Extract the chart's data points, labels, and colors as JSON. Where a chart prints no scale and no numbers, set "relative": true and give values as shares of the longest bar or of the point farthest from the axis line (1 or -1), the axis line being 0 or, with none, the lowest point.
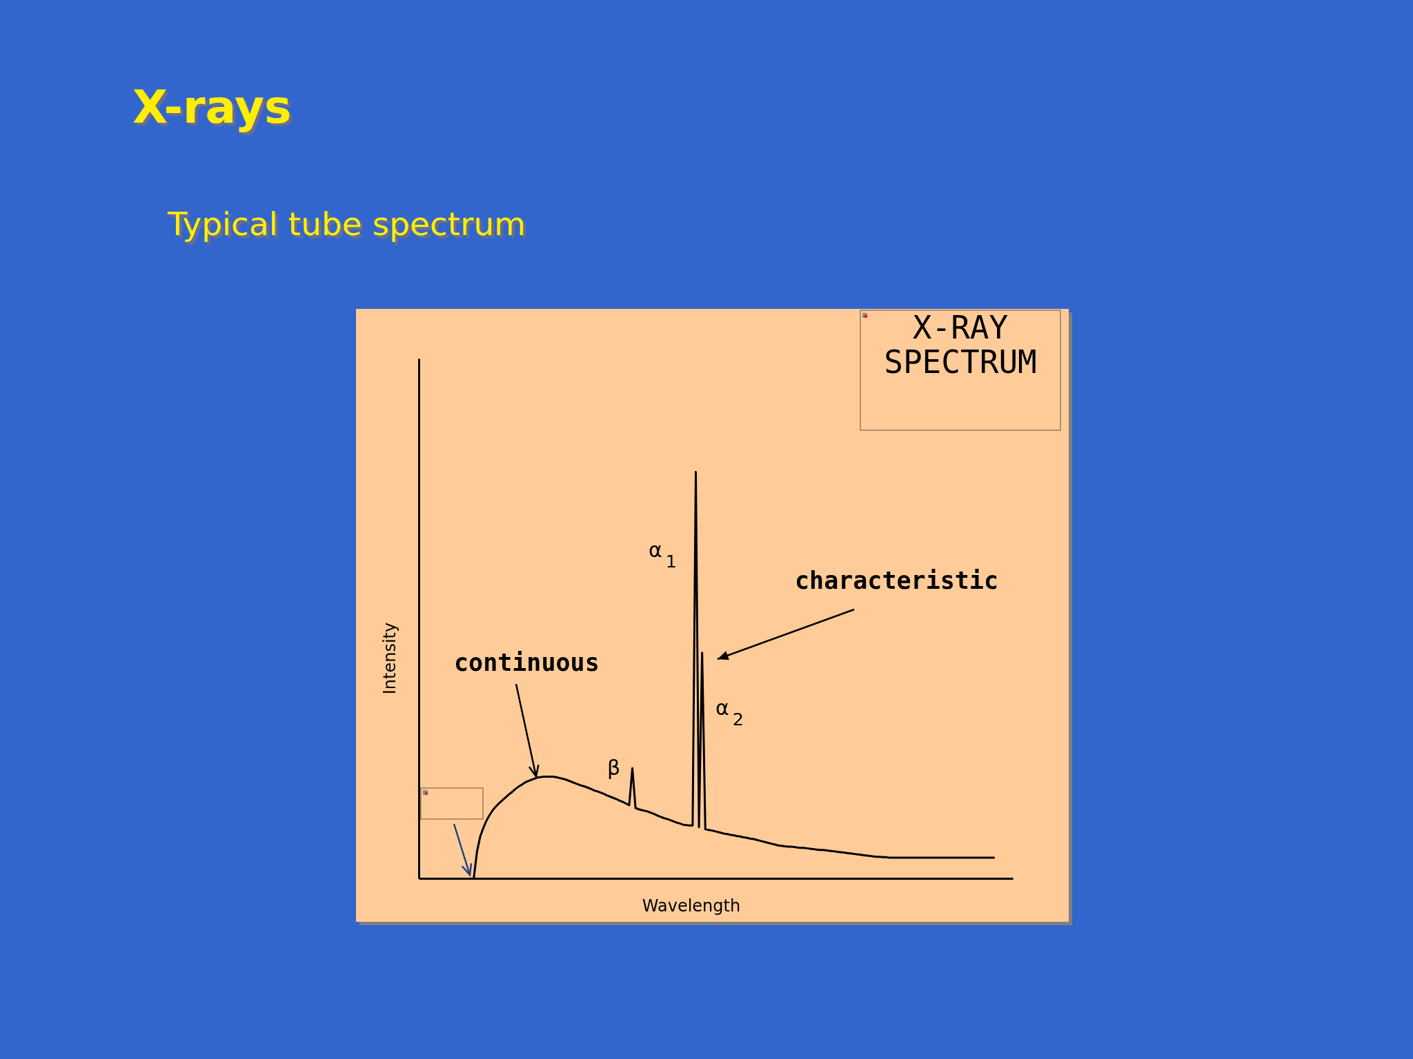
{
  "chart_data": {
    "type": "line",
    "title": "X-rays",
    "subtitle": "Typical tube spectrum",
    "xlabel": "Wavelength",
    "ylabel": "Intensity",
    "relative": true,
    "annotations": [
      "X-RAY SPECTRUM",
      "continuous",
      "characteristic",
      "α$_{1}$",
      "α$_{2}$",
      "β"
    ],
    "categories": [
      null,
      null,
      null,
      null,
      null,
      null,
      null,
      null,
      null,
      null,
      null,
      null,
      null,
      null,
      null,
      null,
      null,
      null,
      null,
      null,
      null,
      null,
      null,
      null,
      null,
      null,
      null,
      null,
      null,
      null,
      null,
      null,
      null,
      null,
      null,
      null,
      null,
      null,
      null,
      null,
      null,
      null,
      null,
      null,
      null,
      null,
      null,
      null,
      null,
      null,
      null,
      null,
      null,
      null,
      null,
      null,
      null,
      null,
      null,
      null,
      null,
      null,
      null,
      null,
      null,
      null,
      null,
      null,
      null,
      null,
      null,
      null,
      null,
      null,
      null,
      null,
      null,
      null,
      null,
      null,
      null,
      null,
      null,
      null,
      null,
      null,
      null,
      null,
      null,
      null,
      null,
      null,
      null,
      null,
      null,
      null,
      null,
      null,
      null,
      null,
      null,
      null,
      null,
      null,
      null,
      null,
      null,
      null,
      null,
      null,
      null,
      null,
      null,
      null,
      null,
      null,
      null,
      null,
      null,
      null,
      null,
      null,
      null,
      null,
      null,
      null,
      null,
      null,
      null,
      null,
      null,
      null,
      null,
      null,
      null,
      null,
      null,
      null,
      null,
      null,
      null,
      null,
      null,
      null,
      null,
      null,
      null,
      null,
      null,
      null,
      null,
      null,
      null,
      null,
      null,
      null,
      null,
      null,
      null,
      null,
      null,
      null,
      null,
      null,
      null
    ],
    "series": [
      {
        "color": "#000000",
        "values": [
          0,
          0.065,
          0.102,
          0.124,
          0.142,
          0.156,
          0.168,
          0.177,
          0.185,
          0.192,
          0.199,
          0.206,
          0.212,
          0.219,
          0.225,
          0.23,
          0.235,
          0.239,
          0.242,
          0.245,
          0.248,
          0.249,
          0.25,
          0.25,
          0.25,
          0.25,
          0.249,
          0.247,
          0.245,
          0.243,
          0.24,
          0.237,
          0.234,
          0.231,
          0.228,
          0.226,
          0.223,
          0.22,
          0.216,
          0.214,
          0.211,
          0.208,
          0.204,
          0.201,
          0.198,
          0.195,
          0.191,
          0.188,
          0.184,
          0.18,
          0.271,
          0.173,
          0.17,
          0.168,
          0.166,
          0.164,
          0.161,
          0.158,
          0.154,
          0.151,
          0.148,
          0.146,
          0.143,
          0.14,
          0.137,
          0.135,
          0.132,
          0.131,
          0.13,
          0.13,
          1,
          0.126,
          0.555,
          0.121,
          0.119,
          0.118,
          0.116,
          0.114,
          0.112,
          0.11,
          0.109,
          0.107,
          0.106,
          0.104,
          0.103,
          0.101,
          0.1,
          0.098,
          0.097,
          0.095,
          0.093,
          0.091,
          0.089,
          0.087,
          0.085,
          0.083,
          0.081,
          0.08,
          0.079,
          0.078,
          0.078,
          0.077,
          0.076,
          0.075,
          0.075,
          0.074,
          0.073,
          0.072,
          0.071,
          0.07,
          0.07,
          0.069,
          0.068,
          0.067,
          0.066,
          0.065,
          0.064,
          0.063,
          0.062,
          0.061,
          0.06,
          0.059,
          0.058,
          0.057,
          0.056,
          0.055,
          0.054,
          0.053,
          0.053,
          0.052,
          0.052,
          0.051,
          0.051,
          0.051,
          0.051,
          0.051,
          0.051,
          0.051,
          0.051,
          0.051,
          0.051,
          0.051,
          0.051,
          0.051,
          0.051,
          0.051,
          0.051,
          0.051,
          0.051,
          0.051,
          0.051,
          0.051,
          0.051,
          0.051,
          0.051,
          0.051,
          0.051,
          0.051,
          0.051,
          0.051,
          0.051,
          0.051,
          0.051,
          0.051,
          0.051
        ]
      }
    ]
  }
}
